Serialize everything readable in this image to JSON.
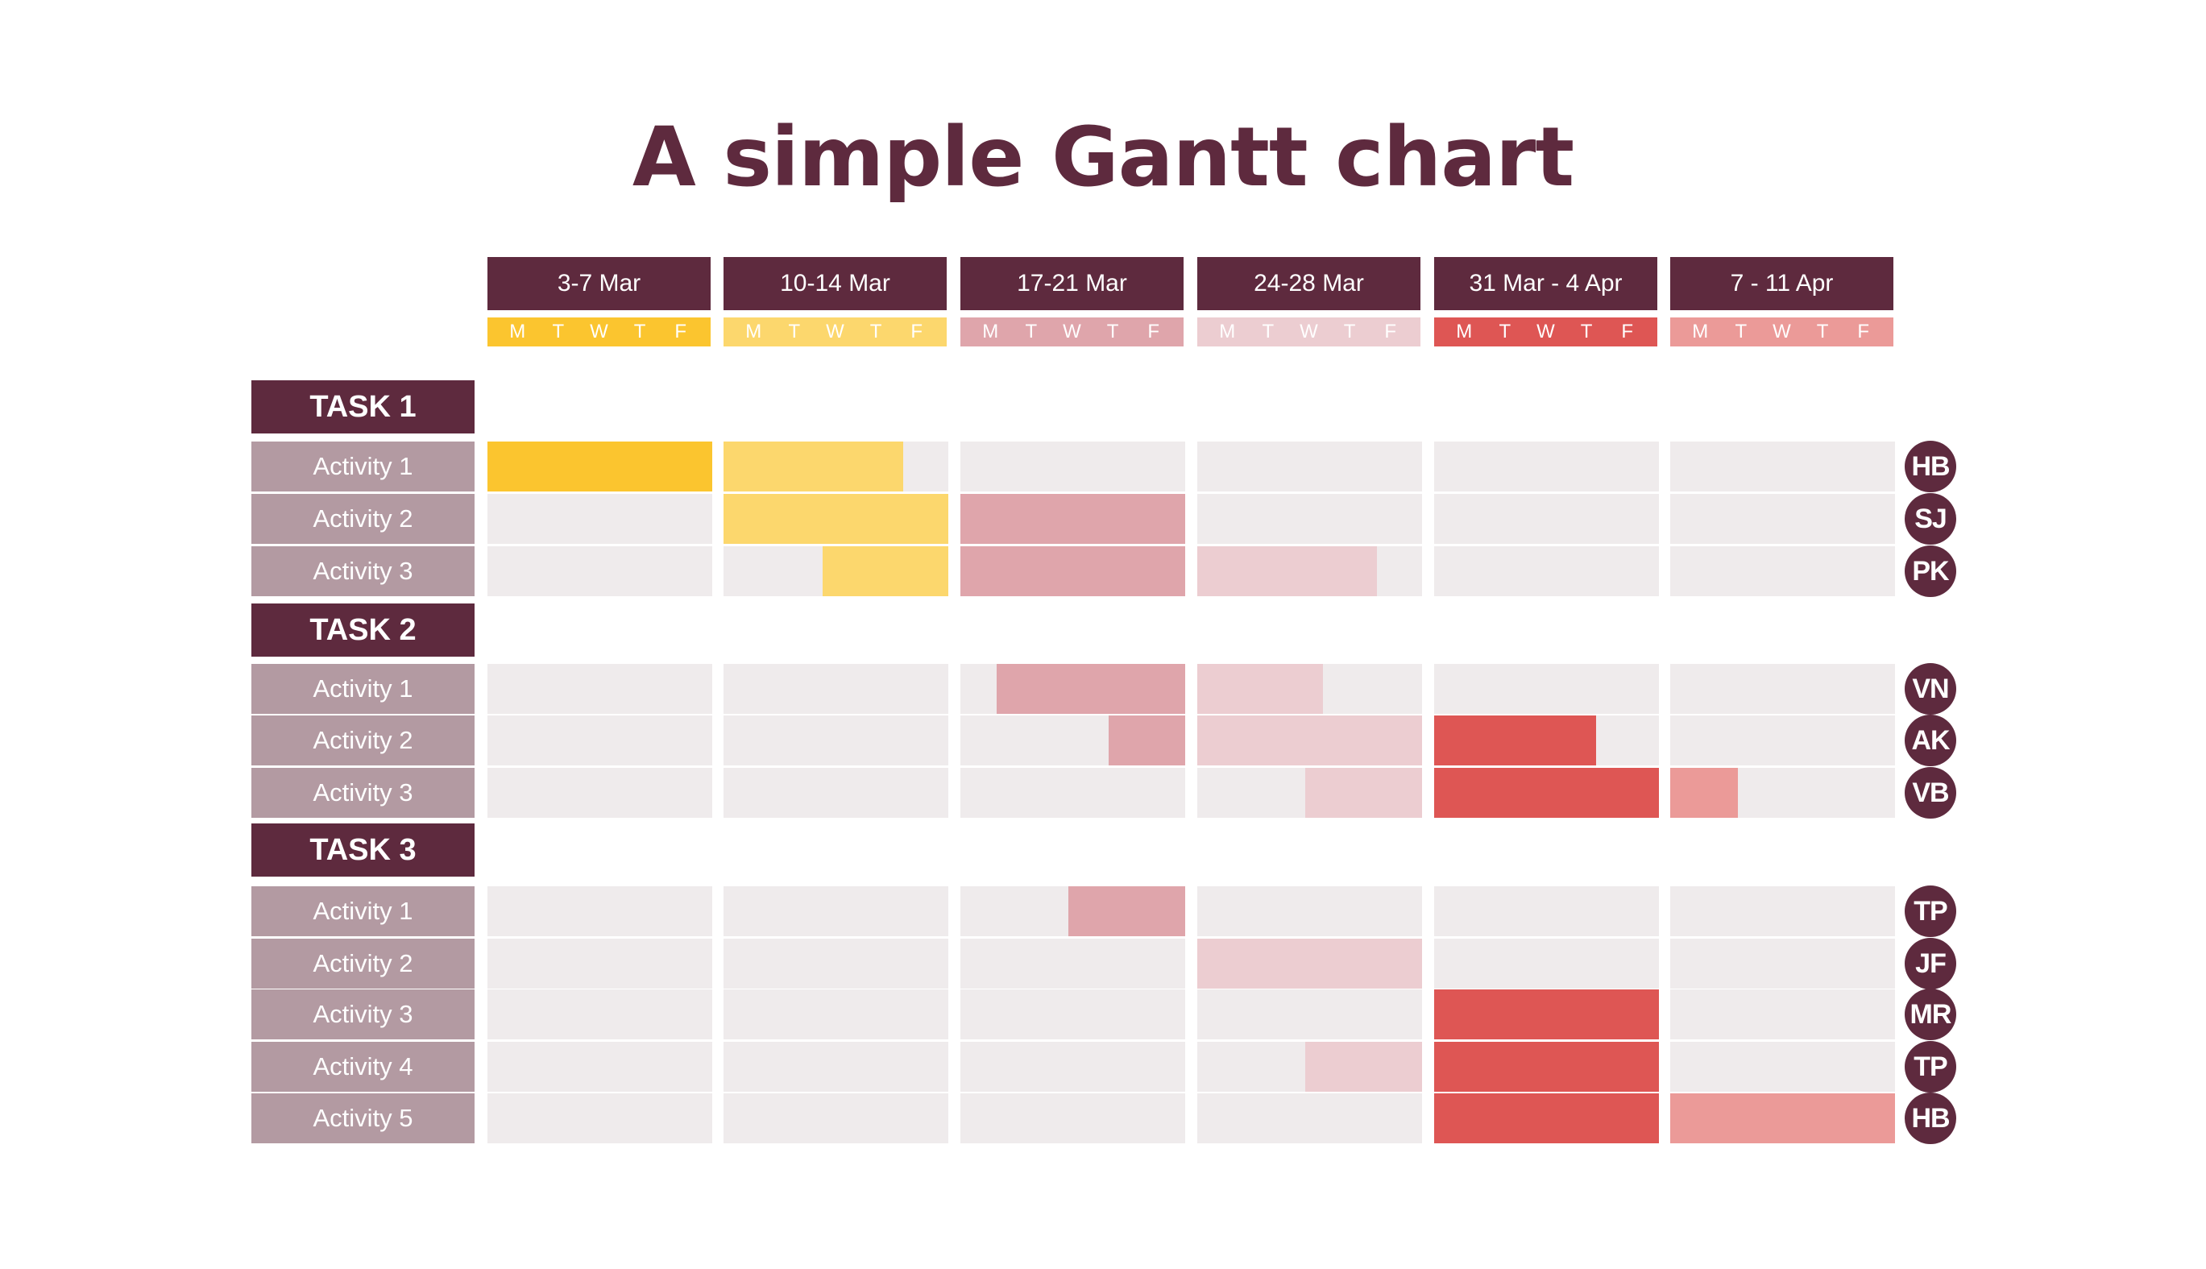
{
  "title": "A simple Gantt chart",
  "weeks": [
    {
      "label": "3-7 Mar",
      "color": "#fbc52f"
    },
    {
      "label": "10-14 Mar",
      "color": "#fcd76d"
    },
    {
      "label": "17-21 Mar",
      "color": "#dfa5ab"
    },
    {
      "label": "24-28 Mar",
      "color": "#eccdd1"
    },
    {
      "label": "31 Mar - 4 Apr",
      "color": "#de5654"
    },
    {
      "label": "7 - 11 Apr",
      "color": "#eb9a98"
    }
  ],
  "days": [
    "M",
    "T",
    "W",
    "T",
    "F"
  ],
  "colors": {
    "dark": "#5e2a3e",
    "label_bg": "#b39aa2",
    "cell_bg": "#efebec"
  },
  "tasks": [
    {
      "name": "TASK 1",
      "activities": [
        {
          "label": "Activity 1",
          "owner": "HB",
          "segments": [
            {
              "start": 0,
              "end": 5,
              "week": 0
            },
            {
              "start": 5,
              "end": 9,
              "week": 1
            }
          ]
        },
        {
          "label": "Activity 2",
          "owner": "SJ",
          "segments": [
            {
              "start": 5,
              "end": 10,
              "week": 1
            },
            {
              "start": 10,
              "end": 15,
              "week": 2
            }
          ]
        },
        {
          "label": "Activity 3",
          "owner": "PK",
          "segments": [
            {
              "start": 7.2,
              "end": 10,
              "week": 1
            },
            {
              "start": 10,
              "end": 15,
              "week": 2
            },
            {
              "start": 15,
              "end": 19,
              "week": 3
            }
          ]
        }
      ]
    },
    {
      "name": "TASK 2",
      "activities": [
        {
          "label": "Activity 1",
          "owner": "VN",
          "segments": [
            {
              "start": 10.8,
              "end": 15,
              "week": 2
            },
            {
              "start": 15,
              "end": 17.8,
              "week": 3
            }
          ]
        },
        {
          "label": "Activity 2",
          "owner": "AK",
          "segments": [
            {
              "start": 13.3,
              "end": 15,
              "week": 2
            },
            {
              "start": 15,
              "end": 20,
              "week": 3
            },
            {
              "start": 20,
              "end": 23.6,
              "week": 4
            }
          ]
        },
        {
          "label": "Activity 3",
          "owner": "VB",
          "segments": [
            {
              "start": 17.4,
              "end": 20,
              "week": 3
            },
            {
              "start": 20,
              "end": 25,
              "week": 4
            },
            {
              "start": 25,
              "end": 26.5,
              "week": 5
            }
          ]
        }
      ]
    },
    {
      "name": "TASK 3",
      "activities": [
        {
          "label": "Activity 1",
          "owner": "TP",
          "segments": [
            {
              "start": 12.4,
              "end": 15,
              "week": 2
            }
          ]
        },
        {
          "label": "Activity 2",
          "owner": "JF",
          "segments": [
            {
              "start": 15,
              "end": 20,
              "week": 3
            }
          ]
        },
        {
          "label": "Activity 3",
          "owner": "MR",
          "segments": [
            {
              "start": 20,
              "end": 25,
              "week": 4
            }
          ]
        },
        {
          "label": "Activity 4",
          "owner": "TP",
          "segments": [
            {
              "start": 17.4,
              "end": 20,
              "week": 3
            },
            {
              "start": 20,
              "end": 25,
              "week": 4
            }
          ]
        },
        {
          "label": "Activity 5",
          "owner": "HB",
          "segments": [
            {
              "start": 20,
              "end": 25,
              "week": 4
            },
            {
              "start": 25,
              "end": 30,
              "week": 5
            }
          ]
        }
      ]
    }
  ]
}
